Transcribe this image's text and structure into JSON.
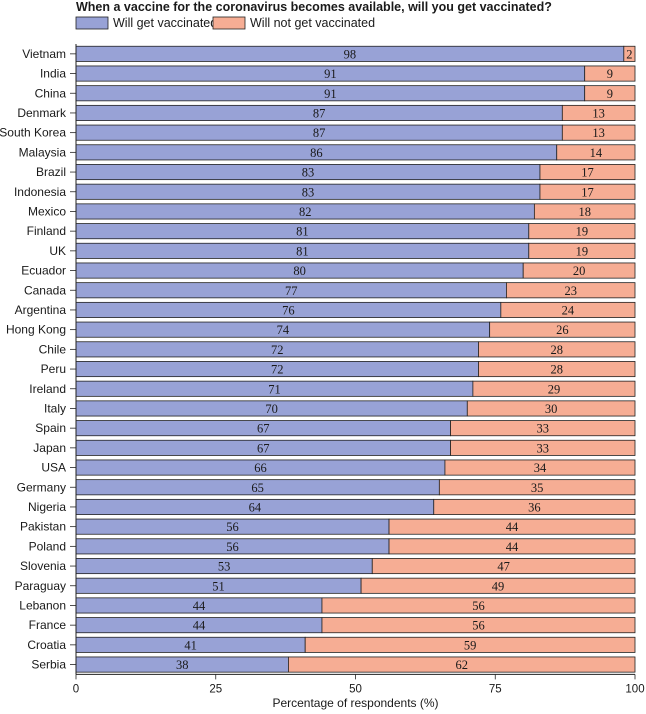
{
  "chart_data": {
    "type": "bar",
    "orientation": "horizontal",
    "stacked": true,
    "title": "When a vaccine for the coronavirus becomes available, will you get vaccinated?",
    "xlabel": "Percentage of respondents (%)",
    "ylabel": "",
    "xlim": [
      0,
      100
    ],
    "xticks": [
      "0",
      "25",
      "50",
      "75",
      "100"
    ],
    "legend_position": "top-left",
    "grid": false,
    "categories": [
      "Vietnam",
      "India",
      "China",
      "Denmark",
      "South Korea",
      "Malaysia",
      "Brazil",
      "Indonesia",
      "Mexico",
      "Finland",
      "UK",
      "Ecuador",
      "Canada",
      "Argentina",
      "Hong Kong",
      "Chile",
      "Peru",
      "Ireland",
      "Italy",
      "Spain",
      "Japan",
      "USA",
      "Germany",
      "Nigeria",
      "Pakistan",
      "Poland",
      "Slovenia",
      "Paraguay",
      "Lebanon",
      "France",
      "Croatia",
      "Serbia"
    ],
    "series": [
      {
        "name": "Will get vaccinated",
        "color": "#98a2d6",
        "values": [
          98,
          91,
          91,
          87,
          87,
          86,
          83,
          83,
          82,
          81,
          81,
          80,
          77,
          76,
          74,
          72,
          72,
          71,
          70,
          67,
          67,
          66,
          65,
          64,
          56,
          56,
          53,
          51,
          44,
          44,
          41,
          38
        ]
      },
      {
        "name": "Will not get vaccinated",
        "color": "#f6ad94",
        "values": [
          2,
          9,
          9,
          13,
          13,
          14,
          17,
          17,
          18,
          19,
          19,
          20,
          23,
          24,
          26,
          28,
          28,
          29,
          30,
          33,
          33,
          34,
          35,
          36,
          44,
          44,
          47,
          49,
          56,
          56,
          59,
          62
        ]
      }
    ]
  }
}
